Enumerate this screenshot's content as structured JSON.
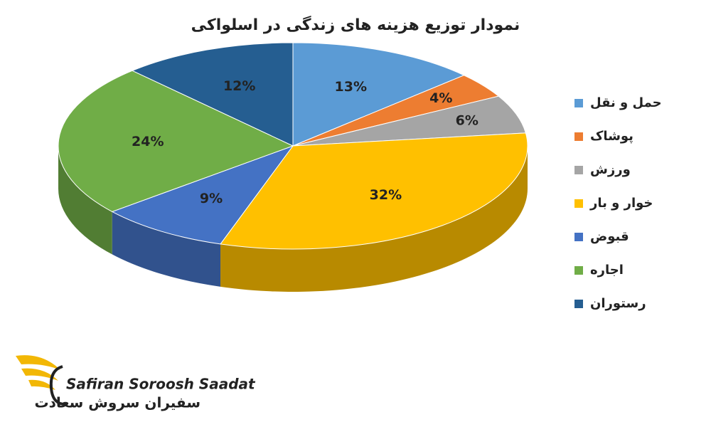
{
  "chart_data": {
    "type": "pie",
    "title": "نمودار توزیع هزینه های زندگی در اسلواکی",
    "categories": [
      "حمل و نقل",
      "پوشاک",
      "ورزش",
      "خوار و بار",
      "قبوض",
      "اجاره",
      "رستوران"
    ],
    "values": [
      13,
      4,
      6,
      32,
      9,
      24,
      12
    ],
    "value_labels": [
      "13%",
      "4%",
      "6%",
      "32%",
      "9%",
      "24%",
      "12%"
    ],
    "colors": [
      "#5b9bd5",
      "#ed7d31",
      "#a5a5a5",
      "#ffc000",
      "#4472c4",
      "#70ad47",
      "#255e91"
    ],
    "legend": "right"
  },
  "logo": {
    "latin": "Safiran Soroosh Saadat",
    "persian": "سفیران سروش سعادت"
  }
}
